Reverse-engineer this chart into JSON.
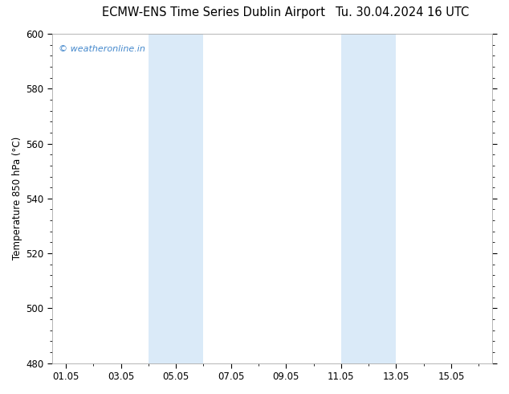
{
  "title_left": "ECMW-ENS Time Series Dublin Airport",
  "title_right": "Tu. 30.04.2024 16 UTC",
  "ylabel": "Temperature 850 hPa (°C)",
  "ylim": [
    480,
    600
  ],
  "yticks": [
    480,
    500,
    520,
    540,
    560,
    580,
    600
  ],
  "xtick_labels": [
    "01.05",
    "03.05",
    "05.05",
    "07.05",
    "09.05",
    "11.05",
    "13.05",
    "15.05"
  ],
  "xtick_positions": [
    0,
    2,
    4,
    6,
    8,
    10,
    12,
    14
  ],
  "xlim": [
    -0.5,
    15.5
  ],
  "shaded_bands": [
    {
      "x_start": 3.0,
      "x_end": 5.0
    },
    {
      "x_start": 10.0,
      "x_end": 12.0
    }
  ],
  "band_color": "#daeaf8",
  "background_color": "#ffffff",
  "watermark_text": "© weatheronline.in",
  "watermark_color": "#4488cc",
  "title_fontsize": 10.5,
  "axis_label_fontsize": 8.5,
  "tick_fontsize": 8.5
}
